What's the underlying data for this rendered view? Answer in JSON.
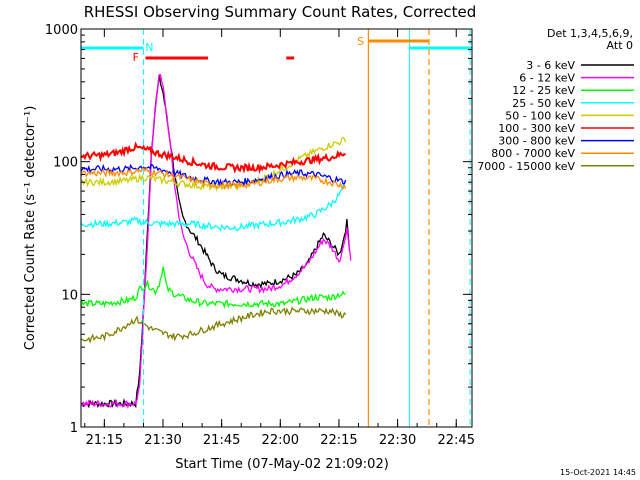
{
  "chart_data": {
    "type": "line",
    "title": "RHESSI Observing Summary Count Rates, Corrected",
    "xlabel": "Start Time (07-May-02 21:09:02)",
    "ylabel": "Corrected Count Rate (s⁻¹ detector⁻¹)",
    "x_unit": "minutes after 21:09:02",
    "xlim": [
      0,
      100
    ],
    "ylim": [
      1,
      1000
    ],
    "yscale": "log",
    "x_ticks": [
      {
        "value": 5.97,
        "label": "21:15"
      },
      {
        "value": 20.97,
        "label": "21:30"
      },
      {
        "value": 35.97,
        "label": "21:45"
      },
      {
        "value": 50.97,
        "label": "22:00"
      },
      {
        "value": 65.97,
        "label": "22:15"
      },
      {
        "value": 80.97,
        "label": "22:30"
      },
      {
        "value": 95.97,
        "label": "22:45"
      }
    ],
    "y_ticks": [
      {
        "value": 1,
        "label": "1"
      },
      {
        "value": 10,
        "label": "10"
      },
      {
        "value": 100,
        "label": "100"
      },
      {
        "value": 1000,
        "label": "1000"
      }
    ],
    "legend": {
      "header": "Det 1,3,4,5,6,9,",
      "header2": "Att 0",
      "placement": "right"
    },
    "series": [
      {
        "name": "3 - 6 keV",
        "color": "#000000",
        "x": [
          0,
          14,
          15,
          16,
          17,
          18,
          19,
          20,
          21,
          22,
          23,
          24,
          25,
          26,
          28,
          30,
          32,
          34,
          36,
          40,
          44,
          48,
          52,
          55,
          58,
          60,
          62,
          64,
          66,
          67,
          68,
          69,
          70,
          71,
          72,
          73
        ],
        "y": [
          1.5,
          1.5,
          2.5,
          8,
          30,
          120,
          260,
          430,
          330,
          210,
          130,
          80,
          50,
          38,
          30,
          25,
          20,
          16,
          14,
          13,
          12,
          12,
          13,
          14,
          17,
          22,
          28,
          24,
          20,
          25,
          35,
          18,
          null,
          null,
          null,
          null
        ]
      },
      {
        "name": "6 - 12 keV",
        "color": "#ff00ff",
        "x": [
          0,
          14,
          15,
          16,
          17,
          18,
          19,
          20,
          21,
          22,
          23,
          24,
          25,
          26,
          28,
          30,
          32,
          34,
          36,
          40,
          44,
          48,
          52,
          55,
          58,
          60,
          62,
          64,
          66,
          67,
          68,
          69
        ],
        "y": [
          1.5,
          1.5,
          2,
          7,
          25,
          110,
          250,
          470,
          360,
          220,
          120,
          65,
          40,
          28,
          20,
          15,
          12,
          11,
          11,
          11,
          11,
          11,
          12,
          14,
          17,
          21,
          26,
          23,
          18,
          22,
          32,
          18
        ]
      },
      {
        "name": "12 - 25 keV",
        "color": "#00ff00",
        "x": [
          0,
          6,
          12,
          14,
          15,
          17,
          19,
          20,
          21,
          22,
          24,
          28,
          32,
          36,
          40,
          44,
          48,
          52,
          56,
          60,
          64,
          66,
          68,
          69,
          72,
          80,
          88,
          94,
          95,
          96,
          99,
          100
        ],
        "y": [
          8.5,
          8.5,
          9,
          9.5,
          11,
          12,
          10.5,
          12,
          16,
          11,
          10,
          9,
          8.5,
          8.5,
          8.5,
          8.5,
          8.5,
          8.5,
          9,
          9.5,
          9.5,
          10,
          10,
          null,
          null,
          null,
          null,
          null,
          null,
          null,
          null,
          null
        ]
      },
      {
        "name": "25 - 50 keV",
        "color": "#00ffff",
        "x": [
          0,
          6,
          12,
          14,
          16,
          20,
          24,
          28,
          32,
          36,
          40,
          44,
          48,
          52,
          56,
          60,
          62,
          64,
          66,
          68,
          69,
          90,
          92,
          94,
          96,
          98,
          99,
          100
        ],
        "y": [
          34,
          34,
          35,
          36,
          35,
          34,
          34,
          34,
          33,
          32,
          32,
          33,
          34,
          35,
          37,
          40,
          44,
          48,
          56,
          70,
          null,
          null,
          null,
          null,
          null,
          null,
          null,
          null
        ]
      },
      {
        "name": "50 - 100 keV",
        "color": "#cccc00",
        "x": [
          0,
          6,
          12,
          14,
          16,
          18,
          20,
          24,
          28,
          32,
          36,
          40,
          44,
          48,
          52,
          56,
          60,
          64,
          66,
          68,
          69,
          92,
          94,
          96,
          98,
          99,
          100
        ],
        "y": [
          70,
          70,
          72,
          74,
          76,
          75,
          73,
          70,
          67,
          65,
          65,
          66,
          70,
          78,
          90,
          105,
          120,
          135,
          140,
          150,
          null,
          null,
          null,
          null,
          null,
          null,
          null
        ]
      },
      {
        "name": "100 - 300 keV",
        "color": "#ff0000",
        "x": [
          0,
          6,
          10,
          12,
          14,
          16,
          18,
          20,
          24,
          28,
          32,
          36,
          40,
          44,
          48,
          52,
          56,
          60,
          64,
          66,
          68,
          69,
          92,
          94,
          96,
          98,
          99,
          100
        ],
        "y": [
          110,
          112,
          118,
          125,
          128,
          124,
          120,
          115,
          108,
          100,
          94,
          91,
          90,
          90,
          92,
          96,
          100,
          104,
          108,
          112,
          118,
          null,
          null,
          null,
          null,
          null,
          null,
          null
        ]
      },
      {
        "name": "300 - 800 keV",
        "color": "#0000ff",
        "x": [
          0,
          6,
          12,
          14,
          16,
          18,
          20,
          24,
          28,
          32,
          36,
          40,
          44,
          48,
          52,
          56,
          60,
          64,
          66,
          68,
          69
        ],
        "y": [
          88,
          88,
          88,
          90,
          92,
          90,
          88,
          82,
          76,
          72,
          70,
          70,
          72,
          76,
          80,
          82,
          80,
          75,
          72,
          70,
          null
        ]
      },
      {
        "name": "800 - 7000 keV",
        "color": "#ff8c00",
        "x": [
          0,
          6,
          12,
          14,
          16,
          18,
          20,
          24,
          28,
          32,
          36,
          40,
          44,
          48,
          52,
          56,
          60,
          64,
          66,
          68,
          69,
          92,
          94,
          96,
          98,
          99,
          100
        ],
        "y": [
          82,
          82,
          83,
          85,
          86,
          84,
          82,
          78,
          73,
          68,
          66,
          66,
          68,
          72,
          75,
          76,
          74,
          70,
          67,
          65,
          null,
          null,
          null,
          null,
          null,
          null,
          null
        ]
      },
      {
        "name": "7000 - 15000 keV",
        "color": "#808000",
        "x": [
          0,
          6,
          10,
          12,
          14,
          16,
          18,
          20,
          24,
          28,
          32,
          36,
          40,
          44,
          48,
          52,
          56,
          60,
          64,
          66,
          68,
          69,
          94,
          96,
          98,
          99,
          100
        ],
        "y": [
          4.5,
          4.8,
          5.5,
          6,
          6.5,
          6,
          5.5,
          5.2,
          4.8,
          5,
          5.5,
          6,
          6.5,
          7,
          7.5,
          7.5,
          7.5,
          7.5,
          7.5,
          7,
          7,
          null,
          null,
          null,
          null,
          null,
          null
        ]
      }
    ],
    "annotations": [
      {
        "text": "N",
        "color": "#00ffff"
      },
      {
        "text": "F",
        "color": "#ff0000"
      },
      {
        "text": "S",
        "color": "#ff8c00"
      }
    ],
    "timestamp": "15-Oct-2021 14:45"
  },
  "ui": {
    "background": "#ffffff",
    "night_color": "#00ffff",
    "flare_color": "#ff0000",
    "saa_color": "#ff8c00"
  }
}
